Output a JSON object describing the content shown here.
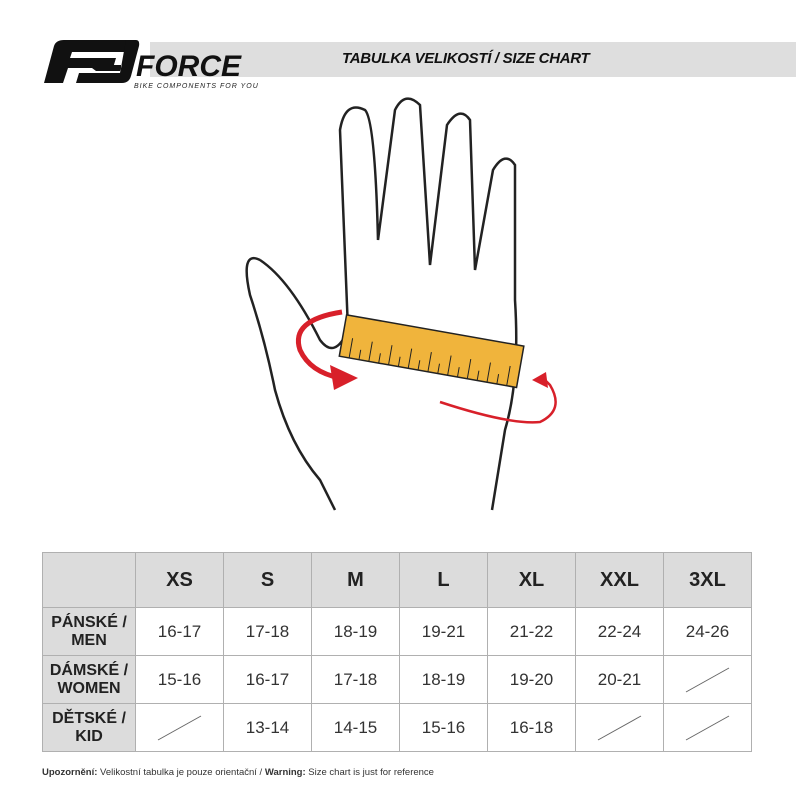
{
  "brand": {
    "name": "FORCE",
    "tagline": "BIKE COMPONENTS FOR YOU"
  },
  "title": "TABULKA VELIKOSTÍ / SIZE CHART",
  "colors": {
    "ruler": "#f0b43c",
    "arrow": "#d8202a",
    "header_bg": "#dcdcdc"
  },
  "table": {
    "sizes": [
      "XS",
      "S",
      "M",
      "L",
      "XL",
      "XXL",
      "3XL"
    ],
    "rows": [
      {
        "label": "PÁNSKÉ / MEN",
        "values": [
          "16-17",
          "17-18",
          "18-19",
          "19-21",
          "21-22",
          "22-24",
          "24-26"
        ]
      },
      {
        "label": "DÁMSKÉ / WOMEN",
        "values": [
          "15-16",
          "16-17",
          "17-18",
          "18-19",
          "19-20",
          "20-21",
          null
        ]
      },
      {
        "label": "DĚTSKÉ / KID",
        "values": [
          null,
          "13-14",
          "14-15",
          "15-16",
          "16-18",
          null,
          null
        ]
      }
    ]
  },
  "note": {
    "cz_label": "Upozornění:",
    "cz_text": " Velikostní tabulka je pouze orientační / ",
    "en_label": "Warning:",
    "en_text": " Size chart is just for reference"
  }
}
